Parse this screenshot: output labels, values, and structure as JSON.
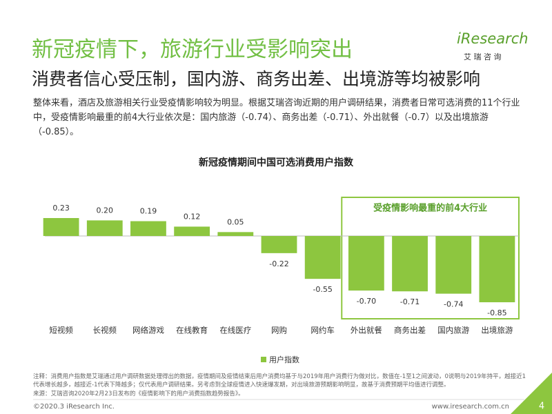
{
  "header": {
    "title": "新冠疫情下，旅游行业受影响突出",
    "subtitle": "消费者信心受压制，国内游、商务出差、出境游等均被影响",
    "logo": "iResearch",
    "logo_cn": "艾 瑞 咨 询"
  },
  "intro": "整体来看，酒店及旅游相关行业受疫情影响较为明显。根据艾瑞咨询近期的用户调研结果，消费者日常可选消费的11个行业中，受疫情影响最重的前4大行业依次是：国内旅游（-0.74）、商务出差（-0.71）、外出就餐（-0.7）以及出境旅游（-0.85）。",
  "chart_data": {
    "type": "bar",
    "title": "新冠疫情期间中国可选消费用户指数",
    "categories": [
      "短视频",
      "长视频",
      "网络游戏",
      "在线教育",
      "在线医疗",
      "网购",
      "网约车",
      "外出就餐",
      "商务出差",
      "国内旅游",
      "出境旅游"
    ],
    "series": [
      {
        "name": "用户指数",
        "color": "#8dc63f",
        "values": [
          0.23,
          0.2,
          0.19,
          0.12,
          0.05,
          -0.22,
          -0.55,
          -0.7,
          -0.71,
          -0.74,
          -0.85
        ],
        "value_labels": [
          "0.23",
          "0.20",
          "0.19",
          "0.12",
          "0.05",
          "-0.22",
          "-0.55",
          "-0.70",
          "-0.71",
          "-0.74",
          "-0.85"
        ]
      }
    ],
    "ylim": [
      -1,
      1
    ],
    "annotation": "受疫情影响最重的前4大行业"
  },
  "footer": {
    "note": "注释：消费用户指数是艾瑞通过用户调研数据处理得出的数据，疫情期间及疫情结束后用户消费均基于与2019年用户消费行为做对比，数值在-1至1之间波动，0说明与2019年持平，越接近1代表增长越多，越接近-1代表下降越多；仅代表用户调研结果。另考虑到全球疫情进入快速爆发期，对出境旅游预期影响明显，故基于消费预期平均值进行调整。",
    "source": "来源：艾瑞咨询2020年2月23日发布的《疫情影响下的用户消费指数趋势报告》。",
    "copyright": "©2020.3 iResearch Inc.",
    "website": "www.iresearch.com.cn",
    "page": "4"
  }
}
